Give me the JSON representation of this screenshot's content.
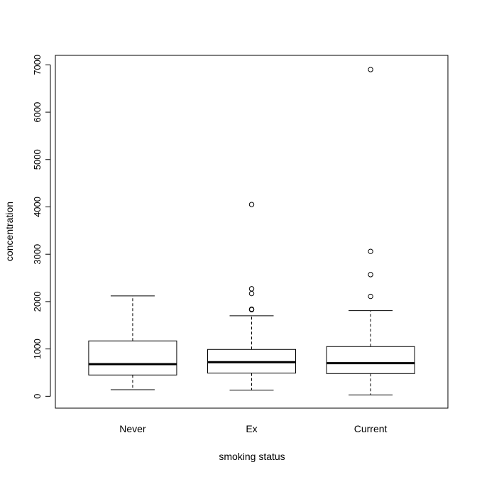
{
  "chart_data": {
    "type": "boxplot",
    "xlabel": "smoking status",
    "ylabel": "concentration",
    "ylim": [
      -250,
      7200
    ],
    "yticks": [
      0,
      1000,
      2000,
      3000,
      4000,
      5000,
      6000,
      7000
    ],
    "yticklabels": [
      "0",
      "1000",
      "2000",
      "3000",
      "4000",
      "5000",
      "6000",
      "7000"
    ],
    "categories": [
      "Never",
      "Ex",
      "Current"
    ],
    "boxes": [
      {
        "category": "Never",
        "whisker_low": 140,
        "q1": 450,
        "median": 680,
        "q3": 1170,
        "whisker_high": 2120,
        "outliers": []
      },
      {
        "category": "Ex",
        "whisker_low": 130,
        "q1": 490,
        "median": 720,
        "q3": 990,
        "whisker_high": 1700,
        "outliers": [
          1830,
          1840,
          2170,
          2270,
          4050
        ]
      },
      {
        "category": "Current",
        "whisker_low": 30,
        "q1": 480,
        "median": 700,
        "q3": 1050,
        "whisker_high": 1810,
        "outliers": [
          2110,
          2570,
          3060,
          6900
        ]
      }
    ],
    "grid": false,
    "legend": "none"
  }
}
